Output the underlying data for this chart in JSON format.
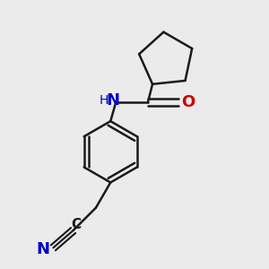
{
  "background_color": "#ebebeb",
  "bond_color": "#1a1a1a",
  "nitrogen_color": "#0000cc",
  "oxygen_color": "#cc0000",
  "line_width": 1.8,
  "figsize": [
    3.0,
    3.0
  ],
  "dpi": 100,
  "xlim": [
    0,
    10
  ],
  "ylim": [
    0,
    10
  ]
}
